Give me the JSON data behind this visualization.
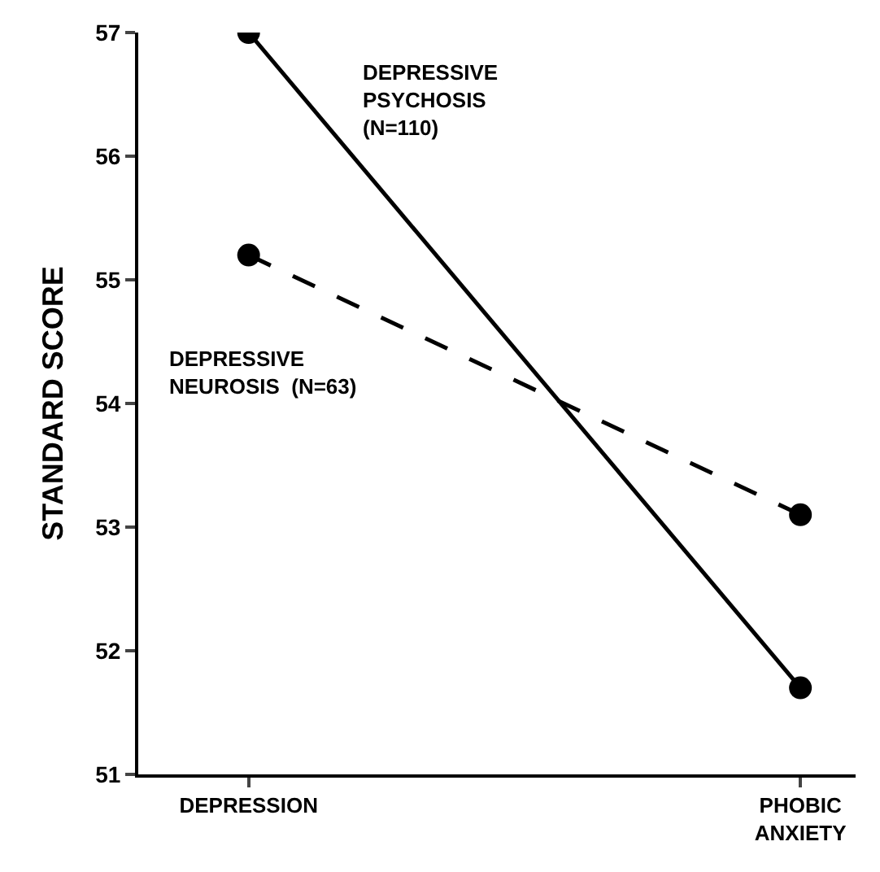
{
  "chart_data": {
    "type": "line",
    "ylabel": "STANDARD SCORE",
    "categories": [
      "DEPRESSION",
      "PHOBIC\nANXIETY"
    ],
    "series": [
      {
        "name": "DEPRESSIVE\nPSYCHOSIS\n(N=110)",
        "color": "#000000",
        "values": [
          57.0,
          51.7
        ],
        "line_style": "solid"
      },
      {
        "name": "DEPRESSIVE\nNEUROSIS  (N=63)",
        "color": "#000000",
        "values": [
          55.2,
          53.1
        ],
        "line_style": "dashed"
      }
    ],
    "ylim": [
      51,
      57
    ],
    "yticks": [
      51,
      52,
      53,
      54,
      55,
      56,
      57
    ],
    "legend": false,
    "marker": "circle"
  }
}
